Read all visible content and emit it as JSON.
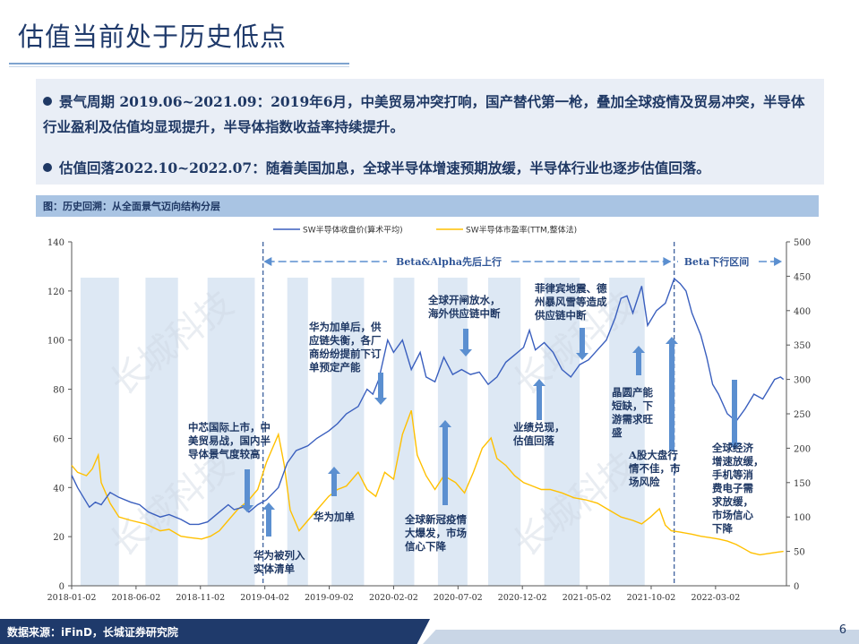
{
  "page": {
    "title": "估值当前处于历史低点",
    "bullets": [
      "景气周期 2019.06~2021.09：2019年6月，中美贸易冲突打响，国产替代第一枪，叠加全球疫情及贸易冲突，半导体行业盈利及估值均显现提升，半导体指数收益率持续提升。",
      "估值回落2022.10~2022.07：随着美国加息，全球半导体增速预期放缓，半导体行业也逐步估值回落。"
    ],
    "figure_caption": "图：历史回溯：从全面景气迈向结构分层",
    "footer_source": "数据来源：iFinD，长城证券研究院",
    "page_number": "6",
    "watermark": "长城科技"
  },
  "colors": {
    "navy": "#1f3a6b",
    "price_line": "#3a5fbe",
    "pe_line": "#ffc000",
    "band": "#dde8f4",
    "arrow": "#5b8fd0",
    "text": "#1f3864"
  },
  "chart_data": {
    "type": "line",
    "legend": [
      "SW半导体收盘价(算术平均)",
      "SW半导体市盈率(TTM,整体法)"
    ],
    "x_tick_labels": [
      "2018-01-02",
      "2018-06-02",
      "2018-11-02",
      "2019-04-02",
      "2019-09-02",
      "2020-02-02",
      "2020-07-02",
      "2020-12-02",
      "2021-05-02",
      "2021-10-02",
      "2022-03-02"
    ],
    "y_left": {
      "min": 0,
      "max": 140,
      "ticks": [
        0,
        20,
        40,
        60,
        80,
        100,
        120,
        140
      ]
    },
    "y_right": {
      "min": 0,
      "max": 500,
      "ticks": [
        0,
        50,
        100,
        150,
        200,
        250,
        300,
        350,
        400,
        450,
        500
      ]
    },
    "series": [
      {
        "name": "SW半导体收盘价(算术平均)",
        "axis": "left",
        "points": [
          [
            0,
            45
          ],
          [
            0.2,
            40
          ],
          [
            0.4,
            36
          ],
          [
            0.6,
            32
          ],
          [
            0.8,
            34
          ],
          [
            1,
            33
          ],
          [
            1.3,
            38
          ],
          [
            1.6,
            36
          ],
          [
            2,
            34
          ],
          [
            2.3,
            33
          ],
          [
            2.6,
            30
          ],
          [
            3,
            28
          ],
          [
            3.3,
            29
          ],
          [
            3.7,
            27
          ],
          [
            4,
            25
          ],
          [
            4.3,
            25
          ],
          [
            4.6,
            26
          ],
          [
            5,
            30
          ],
          [
            5.3,
            33
          ],
          [
            5.5,
            31
          ],
          [
            5.8,
            32
          ],
          [
            6,
            30
          ],
          [
            6.3,
            33
          ],
          [
            6.6,
            35
          ],
          [
            7,
            40
          ],
          [
            7.3,
            50
          ],
          [
            7.6,
            55
          ],
          [
            8,
            57
          ],
          [
            8.3,
            60
          ],
          [
            8.7,
            63
          ],
          [
            9,
            66
          ],
          [
            9.3,
            70
          ],
          [
            9.7,
            73
          ],
          [
            10,
            80
          ],
          [
            10.2,
            78
          ],
          [
            10.4,
            84
          ],
          [
            10.7,
            100
          ],
          [
            10.9,
            95
          ],
          [
            11.2,
            100
          ],
          [
            11.5,
            88
          ],
          [
            11.8,
            95
          ],
          [
            12,
            85
          ],
          [
            12.3,
            83
          ],
          [
            12.6,
            93
          ],
          [
            12.9,
            86
          ],
          [
            13.2,
            88
          ],
          [
            13.5,
            86
          ],
          [
            13.8,
            87
          ],
          [
            14.1,
            82
          ],
          [
            14.4,
            85
          ],
          [
            14.7,
            91
          ],
          [
            15,
            94
          ],
          [
            15.3,
            97
          ],
          [
            15.5,
            104
          ],
          [
            15.7,
            96
          ],
          [
            16,
            99
          ],
          [
            16.3,
            95
          ],
          [
            16.6,
            88
          ],
          [
            16.9,
            85
          ],
          [
            17.2,
            90
          ],
          [
            17.5,
            92
          ],
          [
            17.8,
            96
          ],
          [
            18.1,
            100
          ],
          [
            18.4,
            109
          ],
          [
            18.6,
            117
          ],
          [
            18.8,
            118
          ],
          [
            19,
            111
          ],
          [
            19.3,
            122
          ],
          [
            19.5,
            106
          ],
          [
            19.8,
            112
          ],
          [
            20.1,
            115
          ],
          [
            20.4,
            125
          ],
          [
            20.6,
            123
          ],
          [
            20.8,
            120
          ],
          [
            21,
            111
          ],
          [
            21.3,
            102
          ],
          [
            21.5,
            93
          ],
          [
            21.7,
            82
          ],
          [
            21.9,
            78
          ],
          [
            22.2,
            70
          ],
          [
            22.5,
            67
          ],
          [
            22.8,
            72
          ],
          [
            23.1,
            78
          ],
          [
            23.4,
            76
          ],
          [
            23.8,
            84
          ],
          [
            24,
            85
          ],
          [
            24.1,
            84
          ]
        ]
      },
      {
        "name": "SW半导体市盈率(TTM,整体法)",
        "axis": "right",
        "points": [
          [
            0,
            175
          ],
          [
            0.2,
            165
          ],
          [
            0.5,
            160
          ],
          [
            0.7,
            170
          ],
          [
            0.9,
            190
          ],
          [
            1,
            150
          ],
          [
            1.3,
            120
          ],
          [
            1.6,
            100
          ],
          [
            2,
            95
          ],
          [
            2.5,
            90
          ],
          [
            3,
            80
          ],
          [
            3.3,
            82
          ],
          [
            3.7,
            72
          ],
          [
            4,
            70
          ],
          [
            4.4,
            68
          ],
          [
            4.7,
            72
          ],
          [
            5,
            80
          ],
          [
            5.3,
            95
          ],
          [
            5.6,
            110
          ],
          [
            6,
            125
          ],
          [
            6.3,
            140
          ],
          [
            6.6,
            180
          ],
          [
            7,
            220
          ],
          [
            7.2,
            175
          ],
          [
            7.4,
            110
          ],
          [
            7.7,
            80
          ],
          [
            8,
            95
          ],
          [
            8.3,
            110
          ],
          [
            8.7,
            130
          ],
          [
            9,
            140
          ],
          [
            9.3,
            145
          ],
          [
            9.7,
            165
          ],
          [
            10,
            140
          ],
          [
            10.3,
            130
          ],
          [
            10.6,
            165
          ],
          [
            10.9,
            155
          ],
          [
            11.2,
            220
          ],
          [
            11.5,
            255
          ],
          [
            11.7,
            190
          ],
          [
            12,
            160
          ],
          [
            12.3,
            140
          ],
          [
            12.6,
            160
          ],
          [
            13,
            150
          ],
          [
            13.3,
            135
          ],
          [
            13.6,
            165
          ],
          [
            13.9,
            200
          ],
          [
            14.2,
            215
          ],
          [
            14.4,
            185
          ],
          [
            14.7,
            175
          ],
          [
            15,
            160
          ],
          [
            15.3,
            150
          ],
          [
            15.6,
            145
          ],
          [
            15.9,
            140
          ],
          [
            16.2,
            140
          ],
          [
            16.6,
            135
          ],
          [
            17,
            128
          ],
          [
            17.4,
            125
          ],
          [
            17.8,
            120
          ],
          [
            18.2,
            110
          ],
          [
            18.6,
            100
          ],
          [
            19,
            95
          ],
          [
            19.3,
            90
          ],
          [
            19.6,
            100
          ],
          [
            19.9,
            112
          ],
          [
            20.1,
            88
          ],
          [
            20.3,
            80
          ],
          [
            20.6,
            78
          ],
          [
            21,
            75
          ],
          [
            21.3,
            72
          ],
          [
            21.6,
            70
          ],
          [
            21.9,
            68
          ],
          [
            22.2,
            65
          ],
          [
            22.5,
            60
          ],
          [
            22.8,
            53
          ],
          [
            23,
            48
          ],
          [
            23.3,
            45
          ],
          [
            23.6,
            47
          ],
          [
            23.9,
            49
          ],
          [
            24.1,
            50
          ]
        ]
      }
    ],
    "phase_labels": [
      "Beta&Alpha先后上行",
      "Beta下行区间"
    ],
    "annotations": [
      "中芯国际上市，中美贸易战，国内半导体景气度较高",
      "华为被列入实体清单",
      "华为加单后，供应链失衡，各厂商纷纷提前下订单预定产能",
      "华为加单",
      "全球开闸放水，海外供应链中断",
      "全球新冠疫情大爆发，市场信心下降",
      "业绩兑现，估值回落",
      "菲律宾地震、德州暴风雪等造成供应链中断",
      "晶圆产能短缺，下游需求旺盛",
      "A股大盘行情不佳，市场风险",
      "全球经济增速放缓，手机等消费电子需求放缓，市场信心下降"
    ]
  }
}
